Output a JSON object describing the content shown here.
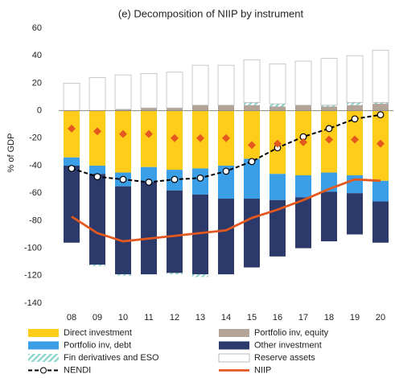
{
  "chart_data": {
    "type": "bar",
    "stacked": true,
    "title": "(e) Decomposition of NIIP by instrument",
    "y_label": "% of GDP",
    "categories": [
      "08",
      "09",
      "10",
      "11",
      "12",
      "13",
      "14",
      "15",
      "16",
      "17",
      "18",
      "19",
      "20"
    ],
    "ylim": [
      -140,
      60
    ],
    "yticks": [
      -140,
      -120,
      -100,
      -80,
      -60,
      -40,
      -20,
      0,
      20,
      40,
      60
    ],
    "grid": false,
    "legend": "bottom",
    "series": [
      {
        "name": "Direct investment",
        "color": "#ffcc1a",
        "values": [
          -34,
          -40,
          -45,
          -41,
          -43,
          -42,
          -40,
          -35,
          -46,
          -47,
          -45,
          -47,
          -51
        ]
      },
      {
        "name": "Portfolio inv, equity",
        "color": "#b3a497",
        "values": [
          0,
          0,
          1,
          2,
          2,
          4,
          4,
          4,
          3,
          4,
          3,
          4,
          5
        ]
      },
      {
        "name": "Portfolio inv, debt",
        "color": "#3a9fe6",
        "values": [
          -6,
          -6,
          -10,
          -11,
          -15,
          -19,
          -24,
          -29,
          -19,
          -16,
          -14,
          -13,
          -15
        ]
      },
      {
        "name": "Other investment",
        "color": "#2b3a6b",
        "values": [
          -56,
          -66,
          -64,
          -67,
          -60,
          -58,
          -55,
          -50,
          -41,
          -37,
          -36,
          -30,
          -30
        ]
      },
      {
        "name": "Fin derivatives and ESO",
        "color": "#8fd6cc",
        "hatch": true,
        "values": [
          0,
          -1,
          -1,
          0,
          -1,
          -2,
          0,
          2,
          2,
          0,
          1,
          2,
          1
        ]
      },
      {
        "name": "Reserve assets",
        "color": "#ffffff",
        "values": [
          20,
          24,
          25,
          25,
          26,
          29,
          29,
          31,
          29,
          32,
          34,
          34,
          38
        ]
      },
      {
        "name": "NENDI",
        "type": "line",
        "color": "#000000",
        "dashed": true,
        "marker": "circle",
        "values": [
          -42,
          -48,
          -50,
          -52,
          -50,
          -49,
          -44,
          -37,
          -27,
          -19,
          -13,
          -6,
          -3
        ]
      },
      {
        "name": "NIIP",
        "type": "line",
        "color": "#e2581f",
        "values": [
          -77,
          -89,
          -95,
          -93,
          -91,
          -89,
          -87,
          -78,
          -72,
          -65,
          -57,
          -50,
          -51
        ]
      },
      {
        "type": "scatter",
        "color": "#e2581f",
        "marker": "diamond",
        "values": [
          -13,
          -15,
          -17,
          -17,
          -20,
          -20,
          -20,
          -25,
          -24,
          -23,
          -21,
          -21,
          -24
        ]
      }
    ]
  }
}
